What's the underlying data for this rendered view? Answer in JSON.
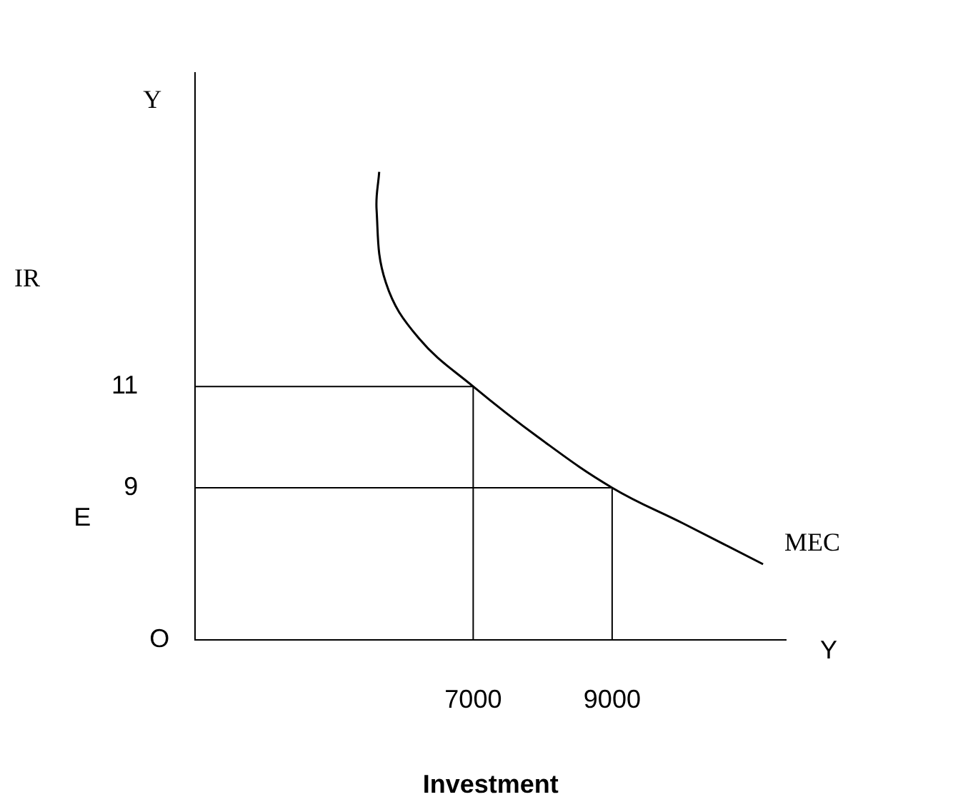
{
  "chart_data": {
    "type": "line",
    "xlabel": "Investment",
    "ylabel": "IR",
    "xlim": [
      3000,
      11500
    ],
    "ylim": [
      6,
      17.2
    ],
    "xticks": [
      7000,
      9000
    ],
    "yticks": [
      9,
      11
    ],
    "grid": false,
    "legend": false,
    "marker": "none",
    "line_style": "solid",
    "series": [
      {
        "name": "MEC",
        "color": "#000000",
        "x": [
          5647,
          5609,
          5743,
          6219,
          7000,
          7933,
          9000,
          10029,
          11172
        ],
        "values": [
          15.24,
          14.5,
          13.05,
          11.95,
          11,
          10,
          9,
          8.29,
          7.49
        ]
      },
      {
        "color": "#000000",
        "x": [
          3000,
          7000,
          7000
        ],
        "values": [
          11,
          11,
          6
        ]
      },
      {
        "color": "#000000",
        "x": [
          3000,
          9000,
          9000
        ],
        "values": [
          9,
          9,
          6
        ]
      }
    ],
    "annotations": [
      "Y",
      "E",
      "O",
      "Y"
    ]
  }
}
